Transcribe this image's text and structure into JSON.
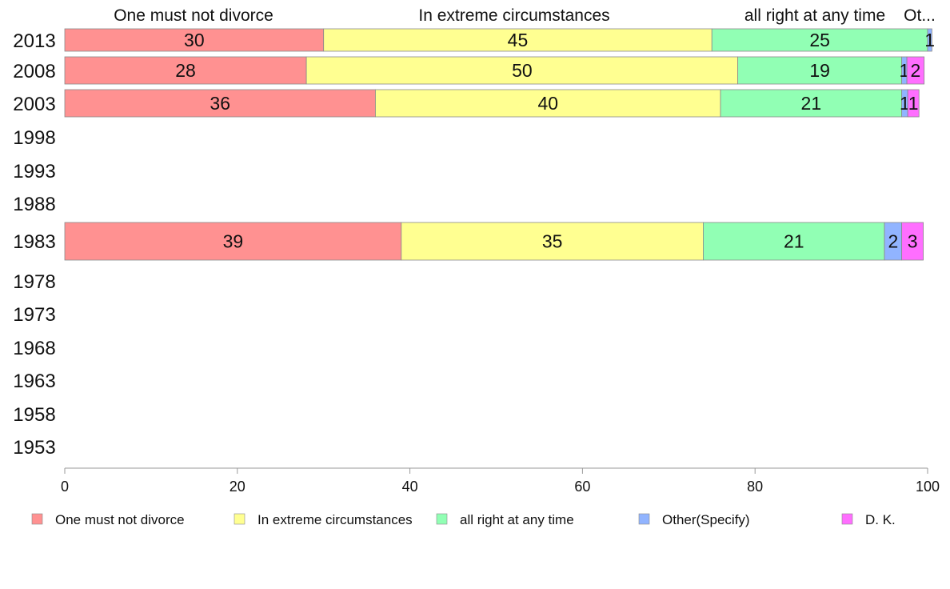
{
  "chart_data": {
    "type": "bar",
    "orientation": "horizontal",
    "stacked": true,
    "title": "",
    "xlabel": "",
    "ylabel": "",
    "xlim": [
      0,
      100
    ],
    "xticks": [
      "0",
      "20",
      "40",
      "60",
      "80",
      "100"
    ],
    "categories": [
      "2013",
      "2008",
      "2003",
      "1998",
      "1993",
      "1988",
      "1983",
      "1978",
      "1973",
      "1968",
      "1963",
      "1958",
      "1953"
    ],
    "top_labels": [
      "One must not divorce",
      "In extreme circumstances",
      "all right at any time",
      "Ot..."
    ],
    "series": [
      {
        "name": "One must not divorce",
        "color": "#ff9191",
        "values": [
          30,
          28,
          36,
          null,
          null,
          null,
          39,
          null,
          null,
          null,
          null,
          null,
          null
        ]
      },
      {
        "name": "In extreme circumstances",
        "color": "#ffff91",
        "values": [
          45,
          50,
          40,
          null,
          null,
          null,
          35,
          null,
          null,
          null,
          null,
          null,
          null
        ]
      },
      {
        "name": "all right at any time",
        "color": "#91ffb4",
        "values": [
          25,
          19,
          21,
          null,
          null,
          null,
          21,
          null,
          null,
          null,
          null,
          null,
          null
        ]
      },
      {
        "name": "Other(Specify)",
        "color": "#91b4ff",
        "values": [
          0.5,
          0.6,
          0.7,
          null,
          null,
          null,
          2,
          null,
          null,
          null,
          null,
          null,
          null
        ]
      },
      {
        "name": "D. K.",
        "color": "#ff6eff",
        "values": [
          0,
          2,
          1.3,
          null,
          null,
          null,
          2.5,
          null,
          null,
          null,
          null,
          null,
          null
        ]
      }
    ],
    "value_labels": [
      [
        "30",
        "45",
        "25",
        "1",
        ""
      ],
      [
        "28",
        "50",
        "19",
        "1",
        "2"
      ],
      [
        "36",
        "40",
        "21",
        "1",
        "1"
      ],
      null,
      null,
      null,
      [
        "39",
        "35",
        "21",
        "2",
        "3"
      ],
      null,
      null,
      null,
      null,
      null,
      null
    ],
    "legend_position": "bottom"
  }
}
